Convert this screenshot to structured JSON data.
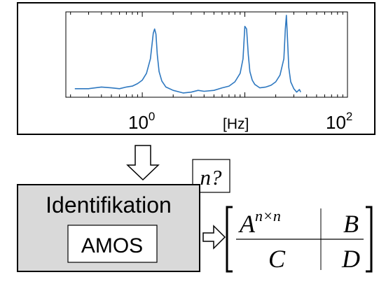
{
  "chart_data": {
    "type": "line",
    "xscale": "log",
    "xlim": [
      0.18,
      100
    ],
    "x_ticks": [
      {
        "base": "10",
        "exp": "0"
      },
      {
        "base": "10",
        "exp": "2"
      }
    ],
    "xlabel": "[Hz]",
    "ylabel": "",
    "grid": false,
    "color": "#2e78c0",
    "series": [
      {
        "x": [
          0.22,
          0.3,
          0.4,
          0.5,
          0.6,
          0.7,
          0.8,
          0.9,
          1.0,
          1.1,
          1.2,
          1.28,
          1.32,
          1.36,
          1.4,
          1.46,
          1.55,
          1.7,
          2.0,
          2.5,
          3.0,
          3.5,
          4.0,
          5.0,
          6.0,
          7.0,
          8.0,
          9.0,
          9.6,
          10.0,
          10.4,
          10.8,
          11.2,
          11.8,
          12.5,
          14.0,
          16.0,
          18.0,
          20.0,
          22.0,
          24.0,
          24.8,
          25.4,
          26.0,
          26.8,
          28.0,
          30.0,
          32.0,
          34.0,
          35.0
        ],
        "y": [
          0.1,
          0.1,
          0.12,
          0.11,
          0.1,
          0.12,
          0.13,
          0.16,
          0.2,
          0.28,
          0.45,
          0.75,
          0.8,
          0.74,
          0.5,
          0.3,
          0.19,
          0.12,
          0.08,
          0.05,
          0.06,
          0.08,
          0.07,
          0.08,
          0.11,
          0.13,
          0.18,
          0.28,
          0.45,
          0.83,
          0.8,
          0.5,
          0.3,
          0.2,
          0.15,
          0.11,
          0.12,
          0.14,
          0.18,
          0.26,
          0.45,
          0.8,
          0.96,
          0.7,
          0.35,
          0.18,
          0.1,
          0.06,
          0.09,
          0.06
        ]
      }
    ]
  },
  "arrow_label": "n?",
  "block": {
    "title": "Identifikation",
    "subtitle": "AMOS"
  },
  "matrix": {
    "a_base": "A",
    "a_sup": "n×n",
    "b": "B",
    "c": "C",
    "d": "D"
  }
}
